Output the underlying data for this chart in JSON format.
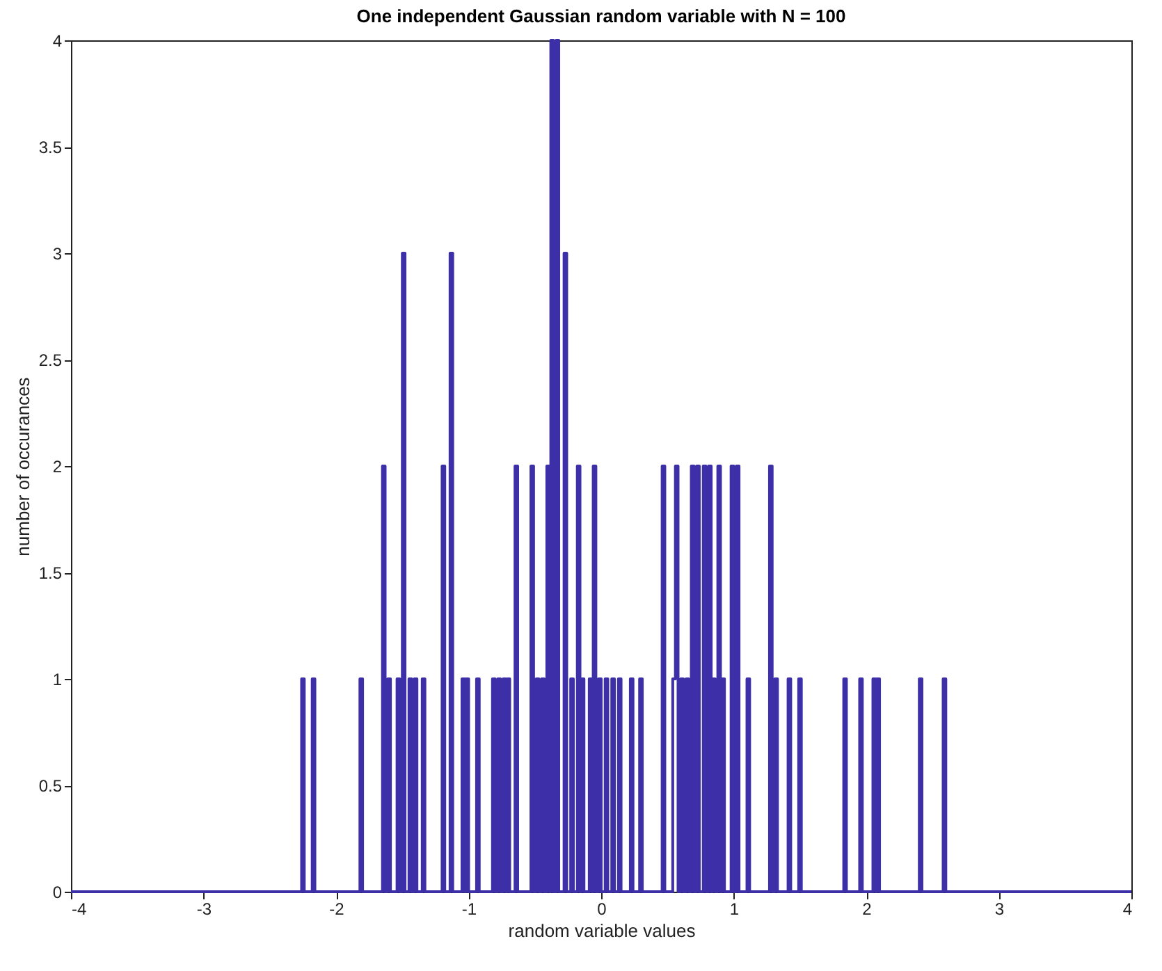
{
  "chart_data": {
    "type": "histogram",
    "title": "One independent Gaussian random variable with N = 100",
    "xlabel": "random variable values",
    "ylabel": "number of occurances",
    "color": "#3d2fa8",
    "bins": [
      -4,
      -2.26,
      -2.24,
      -2.18,
      -2.16,
      -1.82,
      -1.8,
      -1.65,
      -1.63,
      -1.61,
      -1.59,
      -1.54,
      -1.52,
      -1.5,
      -1.48,
      -1.45,
      -1.43,
      -1.41,
      -1.39,
      -1.35,
      -1.33,
      -1.2,
      -1.18,
      -1.14,
      -1.12,
      -1.05,
      -1.03,
      -1.02,
      -1.0,
      -0.94,
      -0.92,
      -0.82,
      -0.8,
      -0.78,
      -0.76,
      -0.74,
      -0.72,
      -0.71,
      -0.69,
      -0.65,
      -0.63,
      -0.53,
      -0.51,
      -0.49,
      -0.47,
      -0.45,
      -0.43,
      -0.41,
      -0.39,
      -0.38,
      -0.36,
      -0.34,
      -0.32,
      -0.28,
      -0.26,
      -0.23,
      -0.21,
      -0.18,
      -0.16,
      -0.15,
      -0.13,
      -0.09,
      -0.07,
      -0.06,
      -0.04,
      -0.02,
      0,
      0.03,
      0.05,
      0.08,
      0.1,
      0.13,
      0.15,
      0.22,
      0.24,
      0.29,
      0.31,
      0.46,
      0.48,
      0.54,
      0.56,
      0.58,
      0.6,
      0.62,
      0.64,
      0.66,
      0.68,
      0.7,
      0.72,
      0.74,
      0.77,
      0.79,
      0.81,
      0.83,
      0.84,
      0.86,
      0.88,
      0.9,
      0.91,
      0.93,
      0.98,
      1.0,
      1.02,
      1.04,
      1.1,
      1.12,
      1.27,
      1.29,
      1.31,
      1.33,
      1.41,
      1.43,
      1.49,
      1.51,
      1.83,
      1.85,
      1.95,
      1.97,
      2.05,
      2.07,
      2.08,
      2.1,
      2.4,
      2.42,
      2.58,
      2.6,
      4
    ],
    "values": [
      0,
      1,
      0,
      1,
      0,
      1,
      0,
      2,
      0,
      1,
      0,
      1,
      0,
      3,
      0,
      1,
      0,
      1,
      0,
      1,
      0,
      2,
      0,
      3,
      0,
      1,
      0,
      1,
      0,
      1,
      0,
      1,
      0,
      1,
      0,
      1,
      0,
      1,
      0,
      2,
      0,
      2,
      0,
      1,
      0,
      1,
      0,
      2,
      0,
      4,
      0,
      4,
      0,
      3,
      0,
      1,
      0,
      2,
      0,
      1,
      0,
      1,
      0,
      2,
      0,
      1,
      0,
      1,
      0,
      1,
      0,
      1,
      0,
      1,
      0,
      1,
      0,
      2,
      0,
      1,
      2,
      0,
      1,
      0,
      1,
      0,
      2,
      0,
      2,
      0,
      2,
      0,
      2,
      0,
      1,
      0,
      2,
      0,
      1,
      0,
      2,
      0,
      2,
      0,
      1,
      0,
      2,
      0,
      1,
      0,
      1,
      0,
      1,
      0,
      1,
      0,
      1,
      0,
      1,
      0,
      1,
      0,
      1,
      0,
      1,
      0
    ],
    "xlim": [
      -4,
      4
    ],
    "ylim": [
      0,
      4
    ],
    "xticks": [
      -4,
      -3,
      -2,
      -1,
      0,
      1,
      2,
      3,
      4
    ],
    "yticks": [
      0,
      0.5,
      1,
      1.5,
      2,
      2.5,
      3,
      3.5,
      4
    ]
  }
}
